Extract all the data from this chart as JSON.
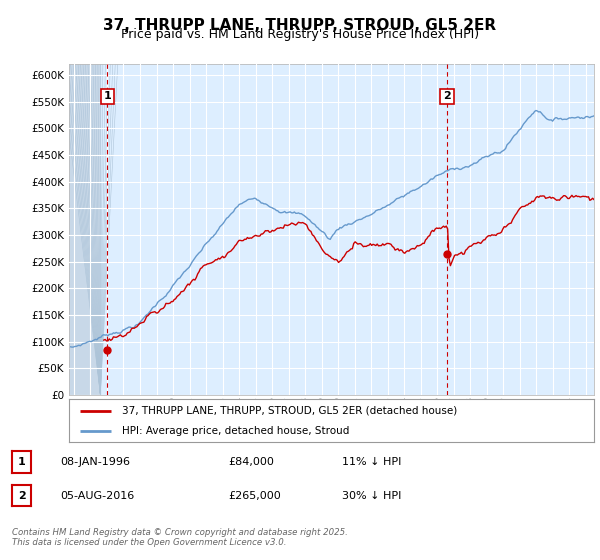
{
  "title": "37, THRUPP LANE, THRUPP, STROUD, GL5 2ER",
  "subtitle": "Price paid vs. HM Land Registry's House Price Index (HPI)",
  "ylim": [
    0,
    620000
  ],
  "yticks": [
    0,
    50000,
    100000,
    150000,
    200000,
    250000,
    300000,
    350000,
    400000,
    450000,
    500000,
    550000,
    600000
  ],
  "xlim_start": 1993.7,
  "xlim_end": 2025.5,
  "bg_color": "#ddeeff",
  "hatch_region_end": 1995.6,
  "grid_color": "#ffffff",
  "red_line_color": "#cc0000",
  "blue_line_color": "#6699cc",
  "marker1_x": 1996.03,
  "marker1_y": 84000,
  "marker2_x": 2016.6,
  "marker2_y": 265000,
  "legend_red": "37, THRUPP LANE, THRUPP, STROUD, GL5 2ER (detached house)",
  "legend_blue": "HPI: Average price, detached house, Stroud",
  "footer": "Contains HM Land Registry data © Crown copyright and database right 2025.\nThis data is licensed under the Open Government Licence v3.0.",
  "title_fontsize": 11,
  "subtitle_fontsize": 9
}
